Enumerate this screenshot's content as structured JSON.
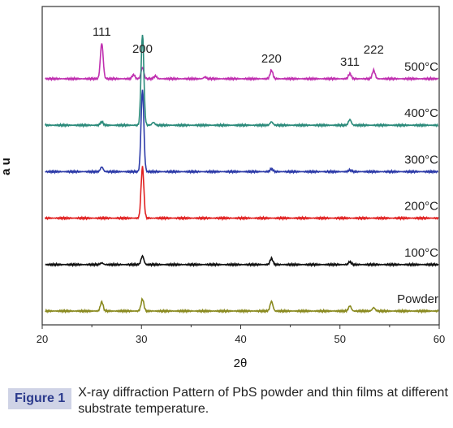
{
  "caption": {
    "tag": "Figure 1",
    "text": "X-ray diffraction Pattern of PbS powder and thin films at different substrate temperature."
  },
  "chart_data": {
    "type": "line",
    "title": "",
    "xlabel": "2θ",
    "ylabel": "a u",
    "xlim": [
      20,
      60
    ],
    "xticks": [
      "20",
      "30",
      "40",
      "50",
      "60"
    ],
    "yticks": false,
    "grid": false,
    "peak_labels": [
      {
        "text": "111",
        "x": 26.0
      },
      {
        "text": "200",
        "x": 30.1
      },
      {
        "text": "220",
        "x": 43.1
      },
      {
        "text": "311",
        "x": 51.0
      },
      {
        "text": "222",
        "x": 53.4
      }
    ],
    "series": [
      {
        "name": "500°C",
        "color": "#c030b0",
        "offset": 6.0,
        "peaks": [
          {
            "x": 26.0,
            "h": 3.1
          },
          {
            "x": 29.2,
            "h": 0.35
          },
          {
            "x": 30.1,
            "h": 1.0
          },
          {
            "x": 31.4,
            "h": 0.25
          },
          {
            "x": 36.4,
            "h": 0.15
          },
          {
            "x": 43.1,
            "h": 0.75
          },
          {
            "x": 51.0,
            "h": 0.45
          },
          {
            "x": 53.4,
            "h": 0.75
          }
        ]
      },
      {
        "name": "400°C",
        "color": "#2a8a7a",
        "offset": 5.0,
        "peaks": [
          {
            "x": 26.0,
            "h": 0.3
          },
          {
            "x": 30.1,
            "h": 8.0
          },
          {
            "x": 31.2,
            "h": 0.25
          },
          {
            "x": 43.1,
            "h": 0.3
          },
          {
            "x": 51.0,
            "h": 0.5
          }
        ]
      },
      {
        "name": "300°C",
        "color": "#2c3aa8",
        "offset": 4.0,
        "peaks": [
          {
            "x": 26.0,
            "h": 0.4
          },
          {
            "x": 30.1,
            "h": 7.2
          },
          {
            "x": 43.1,
            "h": 0.25
          },
          {
            "x": 51.0,
            "h": 0.15
          }
        ]
      },
      {
        "name": "200°C",
        "color": "#e02020",
        "offset": 3.0,
        "peaks": [
          {
            "x": 30.1,
            "h": 4.5
          }
        ]
      },
      {
        "name": "100°C",
        "color": "#111111",
        "offset": 2.0,
        "peaks": [
          {
            "x": 26.0,
            "h": 0.15
          },
          {
            "x": 30.1,
            "h": 0.75
          },
          {
            "x": 43.1,
            "h": 0.55
          },
          {
            "x": 51.0,
            "h": 0.25
          }
        ]
      },
      {
        "name": "Powder",
        "color": "#8a8a20",
        "offset": 1.0,
        "peaks": [
          {
            "x": 26.0,
            "h": 0.8
          },
          {
            "x": 30.1,
            "h": 1.05
          },
          {
            "x": 43.1,
            "h": 0.85
          },
          {
            "x": 51.0,
            "h": 0.45
          },
          {
            "x": 53.4,
            "h": 0.3
          }
        ]
      }
    ]
  }
}
